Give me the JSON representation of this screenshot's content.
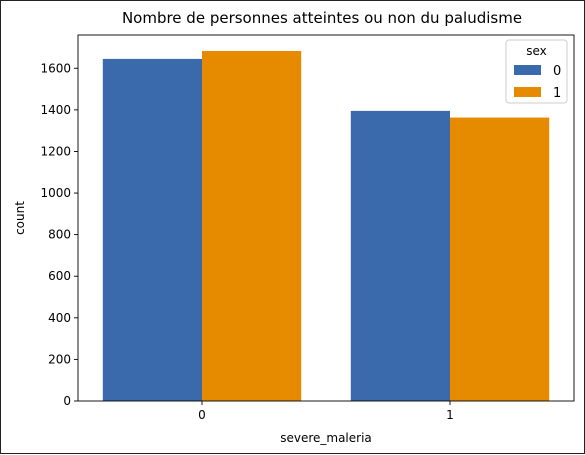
{
  "chart_data": {
    "type": "bar",
    "title": "Nombre de personnes atteintes ou non du paludisme",
    "xlabel": "severe_maleria",
    "ylabel": "count",
    "categories": [
      "0",
      "1"
    ],
    "ylim": [
      0,
      1760
    ],
    "yticks": [
      0,
      200,
      400,
      600,
      800,
      1000,
      1200,
      1400,
      1600
    ],
    "legend": {
      "title": "sex",
      "position": "top-right"
    },
    "series": [
      {
        "name": "0",
        "color": "#3a6aab",
        "values": [
          1645,
          1395
        ]
      },
      {
        "name": "1",
        "color": "#e68a00",
        "values": [
          1683,
          1363
        ]
      }
    ],
    "grid": false
  }
}
